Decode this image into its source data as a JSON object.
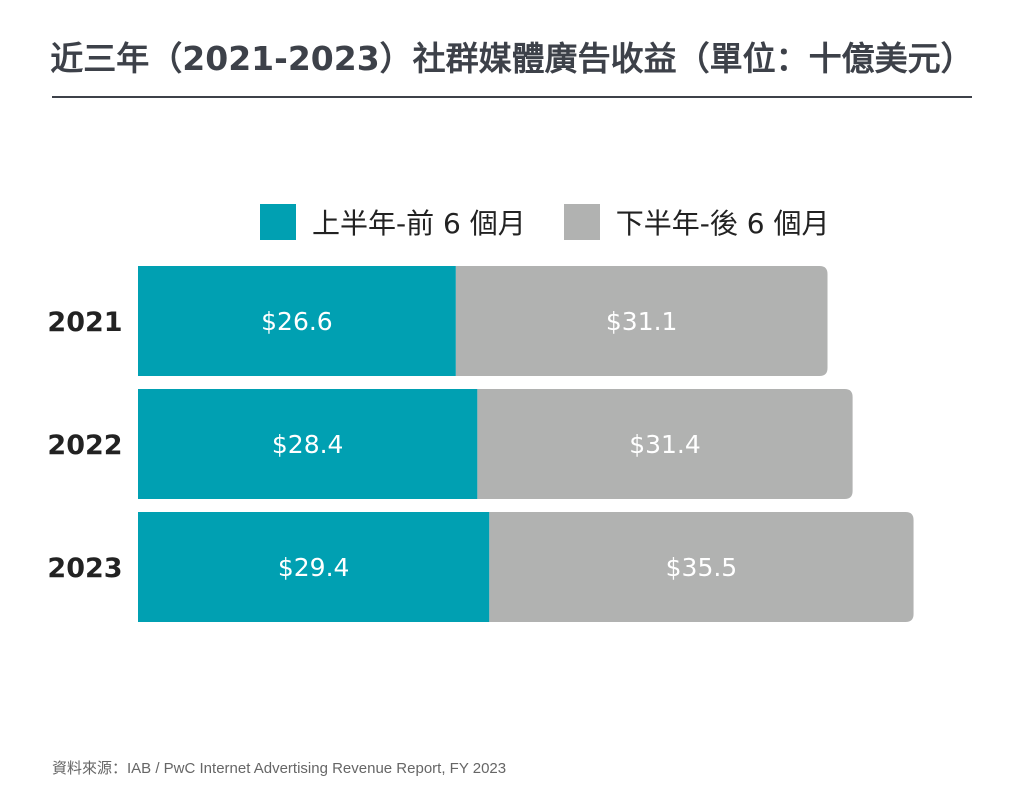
{
  "title": "近三年（2021-2023）社群媒體廣告收益（單位：十億美元）",
  "source": "資料來源：IAB / PwC Internet Advertising Revenue Report, FY 2023",
  "colors": {
    "first_half": "#00a0b2",
    "second_half": "#b1b2b1",
    "title": "#3d4149"
  },
  "chart_data": {
    "type": "bar",
    "orientation": "horizontal",
    "stacked": true,
    "title": "近三年（2021-2023）社群媒體廣告收益（單位：十億美元）",
    "categories": [
      "2021",
      "2022",
      "2023"
    ],
    "series": [
      {
        "name": "上半年-前 6 個月",
        "values": [
          26.6,
          28.4,
          29.4
        ],
        "labels": [
          "$26.6",
          "$28.4",
          "$29.4"
        ],
        "color": "#00a0b2"
      },
      {
        "name": "下半年-後 6 個月",
        "values": [
          31.1,
          31.4,
          35.5
        ],
        "labels": [
          "$31.1",
          "$31.4",
          "$35.5"
        ],
        "color": "#b1b2b1"
      }
    ],
    "legend": "top",
    "grid": false,
    "xlabel": "",
    "ylabel": ""
  }
}
